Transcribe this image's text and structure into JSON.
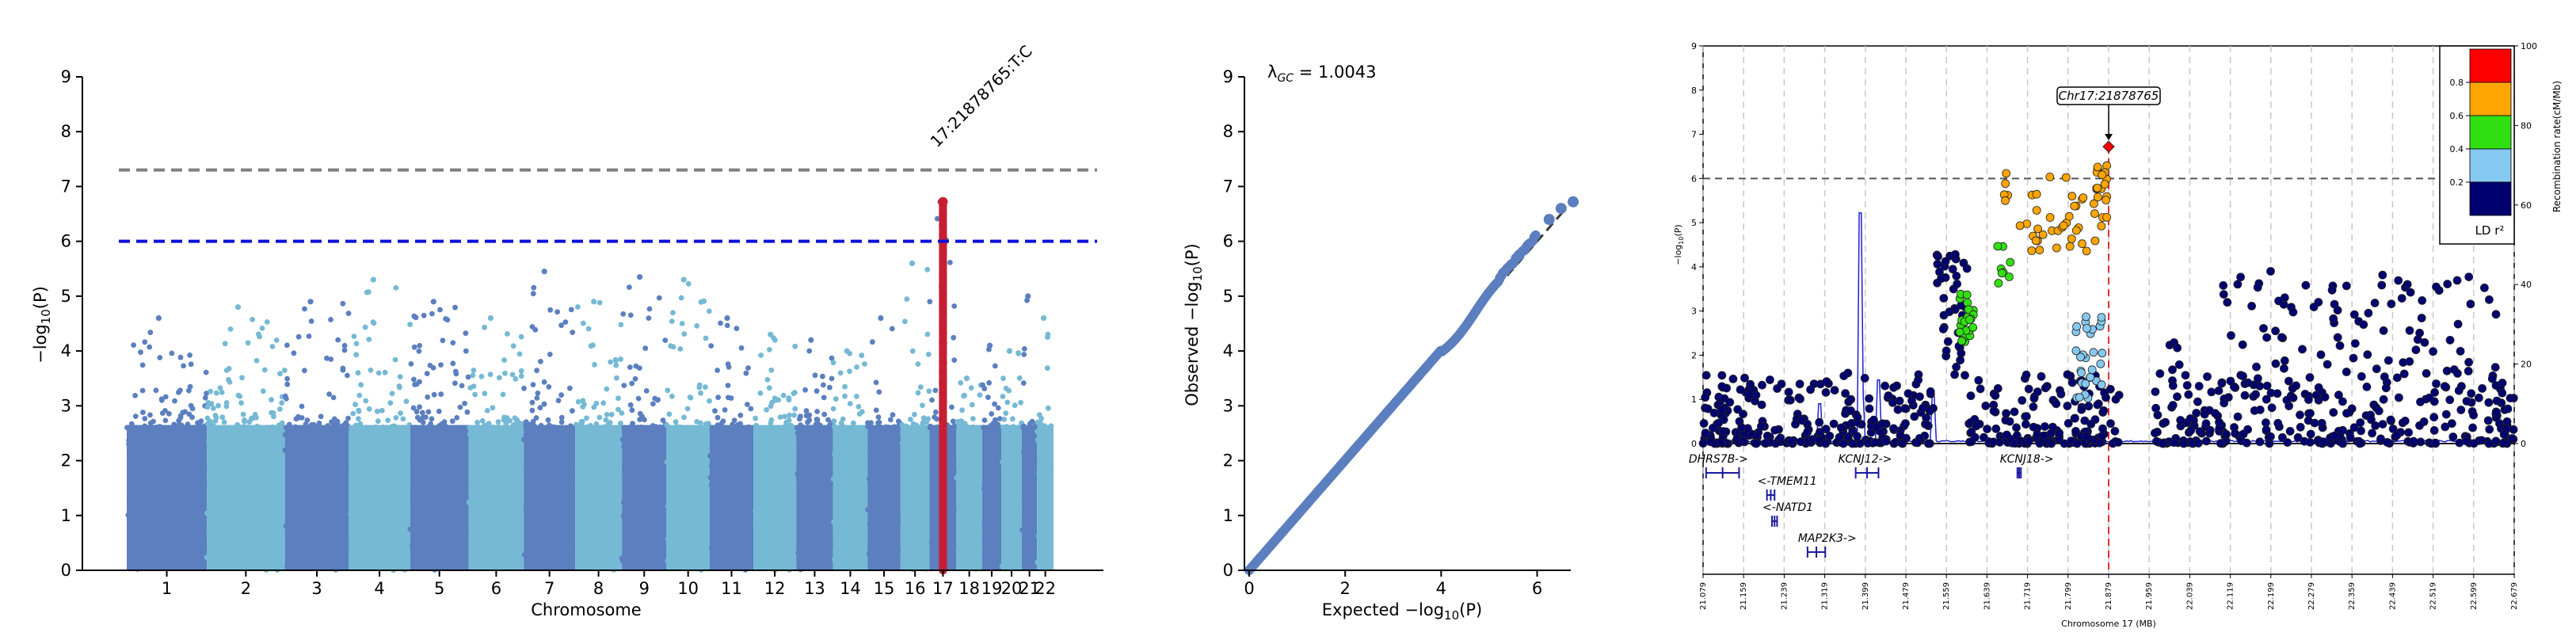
{
  "chart_data": [
    {
      "type": "scatter",
      "subtype": "manhattan",
      "xlabel": "Chromosome",
      "ylabel": "-log10(P)",
      "ylim": [
        0,
        9
      ],
      "yticks": [
        0,
        1,
        2,
        3,
        4,
        5,
        6,
        7,
        8,
        9
      ],
      "chromosomes": [
        "1",
        "2",
        "3",
        "4",
        "5",
        "6",
        "7",
        "8",
        "9",
        "10",
        "11",
        "12",
        "13",
        "14",
        "15",
        "16",
        "17",
        "18",
        "19",
        "20",
        "21",
        "22"
      ],
      "chromosome_peaks": [
        4.6,
        4.8,
        4.9,
        5.3,
        4.9,
        4.6,
        5.45,
        4.9,
        5.35,
        5.3,
        4.6,
        4.3,
        4.2,
        4.0,
        4.6,
        5.6,
        6.72,
        3.5,
        4.1,
        4.0,
        5.0,
        4.6
      ],
      "genome_wide_line": 7.3,
      "suggestive_line": 6.0,
      "annotation": {
        "label": "17:21878765:T:C",
        "chromosome": "17",
        "value": 6.72
      },
      "colors": {
        "odd": "#5b7fbf",
        "even": "#75b9d4",
        "highlight": "#c81e32",
        "genome_wide": "#808080",
        "suggestive": "#0a10d8"
      }
    },
    {
      "type": "scatter",
      "subtype": "qq",
      "lambda_label": "λGC = 1.0043",
      "lambda_value": "1.0043",
      "xlabel": "Expected -log10(P)",
      "ylabel": "Observed -log10(P)",
      "xlim": [
        0,
        6.8
      ],
      "ylim": [
        0,
        9
      ],
      "xticks": [
        0,
        2,
        4,
        6
      ],
      "yticks": [
        0,
        1,
        2,
        3,
        4,
        5,
        6,
        7,
        8,
        9
      ],
      "top_points": [
        [
          6.25,
          6.4
        ],
        [
          6.5,
          6.6
        ],
        [
          6.75,
          6.72
        ]
      ],
      "color": "#5b7fbf"
    },
    {
      "type": "scatter",
      "subtype": "regional",
      "lead_label": "Chr17:21878765",
      "lead": {
        "x": 21.879,
        "y": 6.72
      },
      "xlabel": "Chromosome 17 (MB)",
      "ylabel": "-log10(P)",
      "y2label": "Recombination rate(cM/Mb)",
      "ylim": [
        0,
        9
      ],
      "yticks": [
        0,
        1,
        2,
        3,
        4,
        5,
        6,
        7,
        8,
        9
      ],
      "y2ticks": [
        0,
        20,
        40,
        60,
        80,
        100
      ],
      "xlim": [
        21.079,
        22.679
      ],
      "xticks": [
        "21.079",
        "21.159",
        "21.239",
        "21.319",
        "21.399",
        "21.479",
        "21.559",
        "21.639",
        "21.719",
        "21.799",
        "21.879",
        "21.959",
        "22.039",
        "22.119",
        "22.199",
        "22.279",
        "22.359",
        "22.439",
        "22.519",
        "22.599",
        "22.679"
      ],
      "threshold": 6.0,
      "legend": {
        "title": "LD r²",
        "ticks": [
          "0.8",
          "0.6",
          "0.4",
          "0.2"
        ],
        "colors": [
          "#ff0000",
          "#ffa500",
          "#31e010",
          "#86c9f0",
          "#000070"
        ]
      },
      "genes": [
        {
          "name": "DHRS7B->",
          "start": 21.085,
          "end": 21.15,
          "row": 0
        },
        {
          "name": "<-TMEM11",
          "start": 21.205,
          "end": 21.22,
          "row": 1
        },
        {
          "name": "<-NATD1",
          "start": 21.215,
          "end": 21.225,
          "row": 2
        },
        {
          "name": "MAP2K3->",
          "start": 21.285,
          "end": 21.32,
          "row": 3
        },
        {
          "name": "KCNJ12->",
          "start": 21.38,
          "end": 21.425,
          "row": 0
        },
        {
          "name": "KCNJ18->",
          "start": 21.699,
          "end": 21.706,
          "row": 0
        }
      ]
    }
  ]
}
